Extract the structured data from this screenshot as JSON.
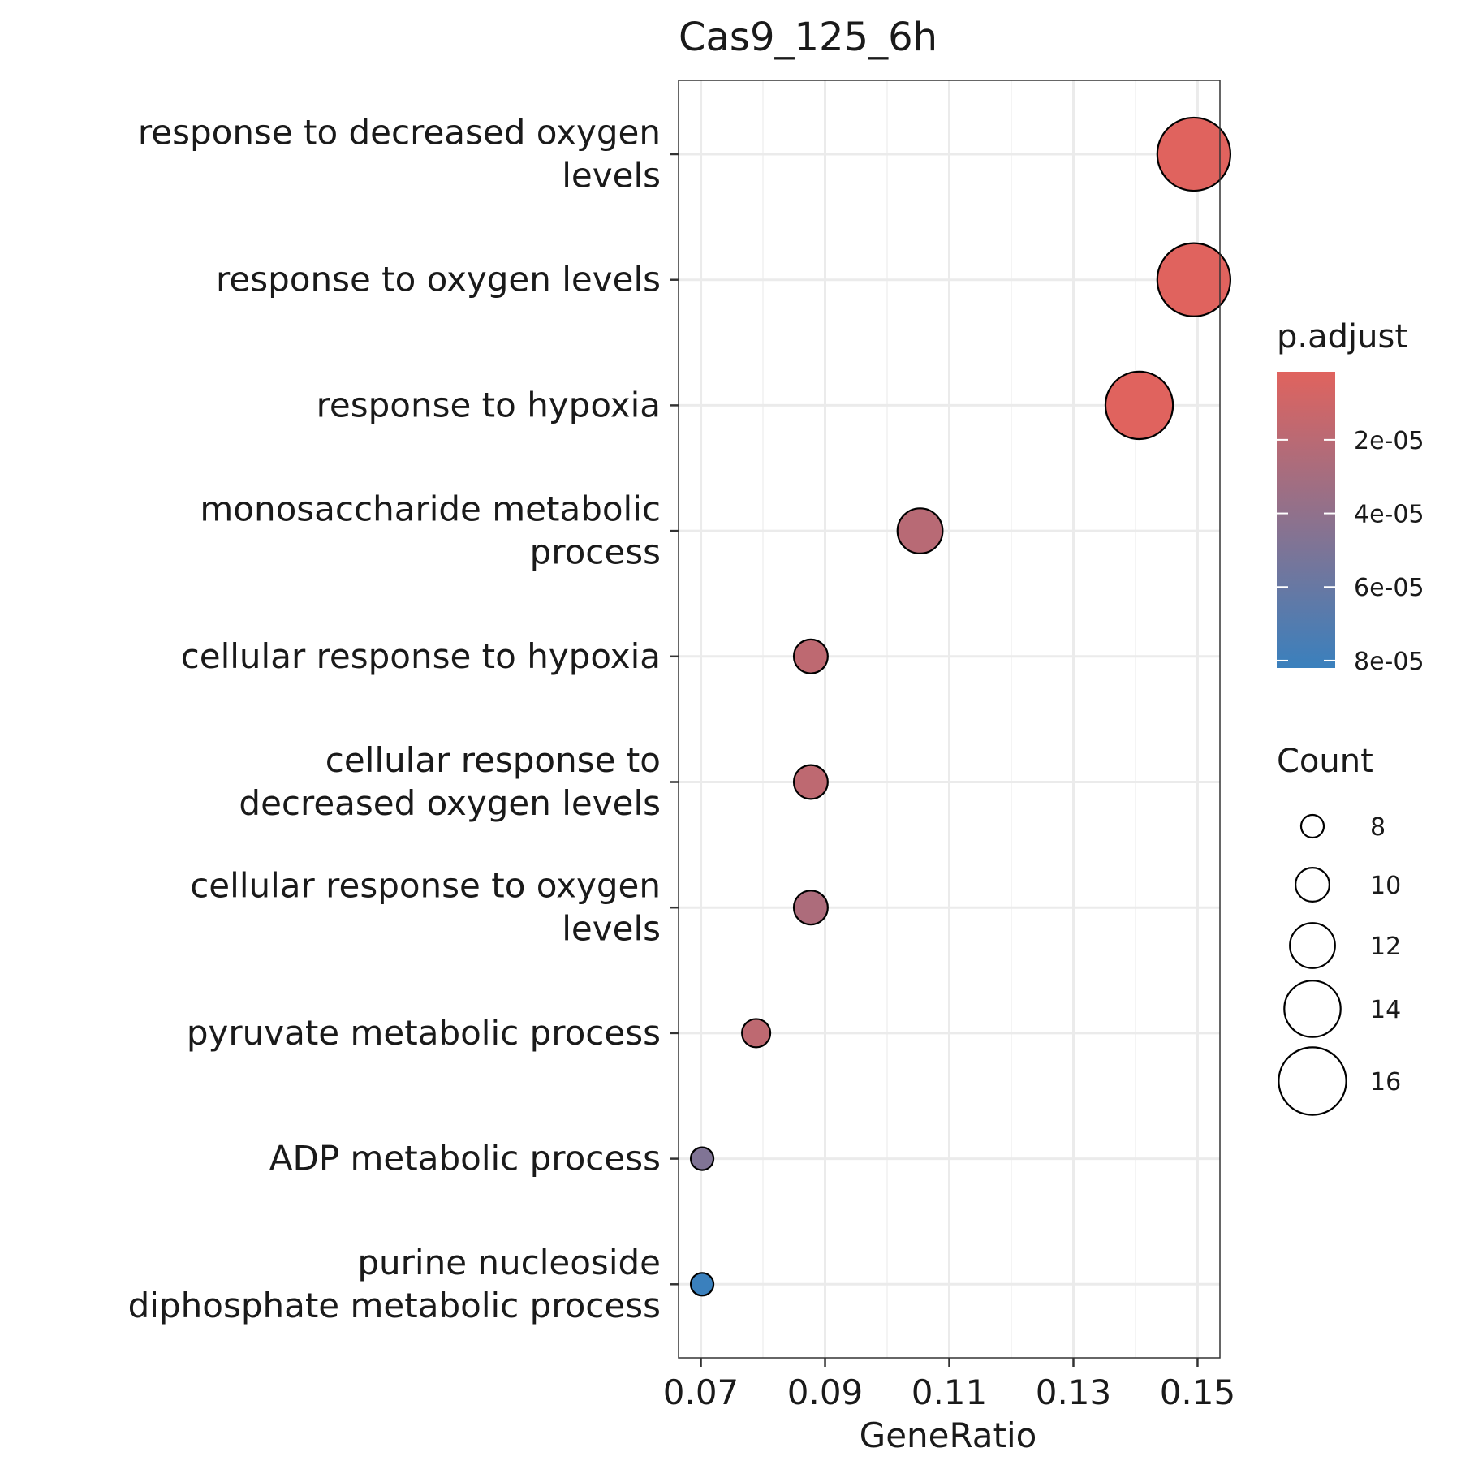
{
  "chart_data": {
    "type": "scatter",
    "title": "Cas9_125_6h",
    "xlabel": "GeneRatio",
    "ylabel": "",
    "x_ticks": [
      "0.07",
      "0.09",
      "0.11",
      "0.13",
      "0.15"
    ],
    "x_tick_values": [
      0.07,
      0.09,
      0.11,
      0.13,
      0.15
    ],
    "xlim": [
      0.0664,
      0.1536
    ],
    "grid": true,
    "legend_placement": "right",
    "points": [
      {
        "term": [
          "response to decreased oxygen",
          "levels"
        ],
        "gene_ratio": 0.1494,
        "count": 17,
        "p_adjust": 1.5e-06
      },
      {
        "term": [
          "response to oxygen levels"
        ],
        "gene_ratio": 0.1494,
        "count": 17,
        "p_adjust": 1.5e-06
      },
      {
        "term": [
          "response to hypoxia"
        ],
        "gene_ratio": 0.1406,
        "count": 16,
        "p_adjust": 1.5e-06
      },
      {
        "term": [
          "monosaccharide metabolic",
          "process"
        ],
        "gene_ratio": 0.1053,
        "count": 12,
        "p_adjust": 2.1e-05
      },
      {
        "term": [
          "cellular response to hypoxia"
        ],
        "gene_ratio": 0.0877,
        "count": 10,
        "p_adjust": 1.8e-05
      },
      {
        "term": [
          "cellular response to",
          "decreased oxygen levels"
        ],
        "gene_ratio": 0.0877,
        "count": 10,
        "p_adjust": 1.8e-05
      },
      {
        "term": [
          "cellular response to oxygen",
          "levels"
        ],
        "gene_ratio": 0.0877,
        "count": 10,
        "p_adjust": 2.6e-05
      },
      {
        "term": [
          "pyruvate metabolic process"
        ],
        "gene_ratio": 0.0789,
        "count": 9,
        "p_adjust": 1.8e-05
      },
      {
        "term": [
          "ADP metabolic process"
        ],
        "gene_ratio": 0.0702,
        "count": 8,
        "p_adjust": 4.8e-05
      },
      {
        "term": [
          "purine nucleoside",
          "diphosphate metabolic process"
        ],
        "gene_ratio": 0.0702,
        "count": 8,
        "p_adjust": 8.2e-05
      }
    ],
    "color_legend": {
      "title": "p.adjust",
      "labels": [
        "2e-05",
        "4e-05",
        "6e-05",
        "8e-05"
      ],
      "values": [
        2e-05,
        4e-05,
        6e-05,
        8e-05
      ],
      "range": [
        1.5e-06,
        8.2e-05
      ],
      "low_color": "#E0635E",
      "high_color": "#3A80BD"
    },
    "size_legend": {
      "title": "Count",
      "labels": [
        "8",
        "10",
        "12",
        "14",
        "16"
      ],
      "values": [
        8,
        10,
        12,
        14,
        16
      ]
    }
  }
}
